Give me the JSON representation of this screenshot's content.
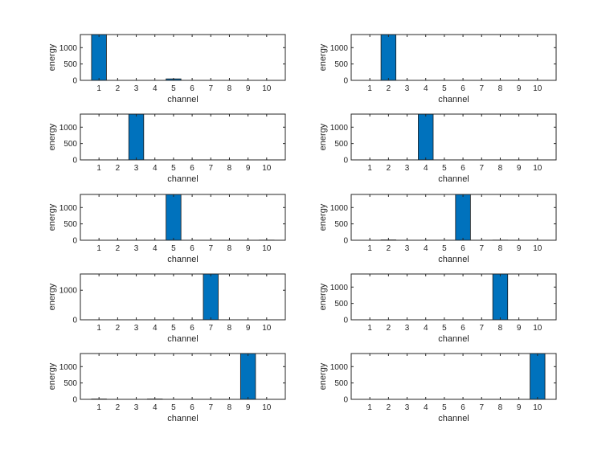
{
  "chart_data": [
    {
      "type": "bar",
      "xlabel": "channel",
      "ylabel": "energy",
      "categories": [
        "1",
        "2",
        "3",
        "4",
        "5",
        "6",
        "7",
        "8",
        "9",
        "10"
      ],
      "values": [
        1600,
        0,
        0,
        0,
        45,
        0,
        0,
        0,
        0,
        0
      ],
      "ylim": [
        0,
        1400
      ],
      "yticks": [
        "0",
        "500",
        "1000"
      ],
      "ytick_values": [
        0,
        500,
        1000
      ]
    },
    {
      "type": "bar",
      "xlabel": "channel",
      "ylabel": "energy",
      "categories": [
        "1",
        "2",
        "3",
        "4",
        "5",
        "6",
        "7",
        "8",
        "9",
        "10"
      ],
      "values": [
        0,
        1600,
        0,
        0,
        0,
        0,
        0,
        0,
        0,
        0
      ],
      "ylim": [
        0,
        1400
      ],
      "yticks": [
        "0",
        "500",
        "1000"
      ],
      "ytick_values": [
        0,
        500,
        1000
      ]
    },
    {
      "type": "bar",
      "xlabel": "channel",
      "ylabel": "energy",
      "categories": [
        "1",
        "2",
        "3",
        "4",
        "5",
        "6",
        "7",
        "8",
        "9",
        "10"
      ],
      "values": [
        0,
        0,
        1600,
        0,
        0,
        0,
        0,
        0,
        0,
        0
      ],
      "ylim": [
        0,
        1400
      ],
      "yticks": [
        "0",
        "500",
        "1000"
      ],
      "ytick_values": [
        0,
        500,
        1000
      ]
    },
    {
      "type": "bar",
      "xlabel": "channel",
      "ylabel": "energy",
      "categories": [
        "1",
        "2",
        "3",
        "4",
        "5",
        "6",
        "7",
        "8",
        "9",
        "10"
      ],
      "values": [
        0,
        0,
        0,
        1600,
        0,
        0,
        0,
        0,
        0,
        0
      ],
      "ylim": [
        0,
        1400
      ],
      "yticks": [
        "0",
        "500",
        "1000"
      ],
      "ytick_values": [
        0,
        500,
        1000
      ]
    },
    {
      "type": "bar",
      "xlabel": "channel",
      "ylabel": "energy",
      "categories": [
        "1",
        "2",
        "3",
        "4",
        "5",
        "6",
        "7",
        "8",
        "9",
        "10"
      ],
      "values": [
        0,
        0,
        0,
        0,
        1600,
        0,
        0,
        0,
        0,
        5
      ],
      "ylim": [
        0,
        1400
      ],
      "yticks": [
        "0",
        "500",
        "1000"
      ],
      "ytick_values": [
        0,
        500,
        1000
      ]
    },
    {
      "type": "bar",
      "xlabel": "channel",
      "ylabel": "energy",
      "categories": [
        "1",
        "2",
        "3",
        "4",
        "5",
        "6",
        "7",
        "8",
        "9",
        "10"
      ],
      "values": [
        0,
        10,
        0,
        0,
        0,
        1600,
        0,
        5,
        0,
        0
      ],
      "ylim": [
        0,
        1400
      ],
      "yticks": [
        "0",
        "500",
        "1000"
      ],
      "ytick_values": [
        0,
        500,
        1000
      ]
    },
    {
      "type": "bar",
      "xlabel": "channel",
      "ylabel": "energy",
      "categories": [
        "1",
        "2",
        "3",
        "4",
        "5",
        "6",
        "7",
        "8",
        "9",
        "10"
      ],
      "values": [
        0,
        0,
        0,
        0,
        0,
        0,
        1600,
        0,
        0,
        0
      ],
      "ylim": [
        0,
        1550
      ],
      "yticks": [
        "0",
        "1000"
      ],
      "ytick_values": [
        0,
        1000
      ]
    },
    {
      "type": "bar",
      "xlabel": "channel",
      "ylabel": "energy",
      "categories": [
        "1",
        "2",
        "3",
        "4",
        "5",
        "6",
        "7",
        "8",
        "9",
        "10"
      ],
      "values": [
        0,
        0,
        0,
        0,
        0,
        0,
        0,
        1600,
        0,
        0
      ],
      "ylim": [
        0,
        1400
      ],
      "yticks": [
        "0",
        "500",
        "1000"
      ],
      "ytick_values": [
        0,
        500,
        1000
      ]
    },
    {
      "type": "bar",
      "xlabel": "channel",
      "ylabel": "energy",
      "categories": [
        "1",
        "2",
        "3",
        "4",
        "5",
        "6",
        "7",
        "8",
        "9",
        "10"
      ],
      "values": [
        10,
        0,
        0,
        10,
        0,
        0,
        0,
        0,
        1600,
        0
      ],
      "ylim": [
        0,
        1400
      ],
      "yticks": [
        "0",
        "500",
        "1000"
      ],
      "ytick_values": [
        0,
        500,
        1000
      ]
    },
    {
      "type": "bar",
      "xlabel": "channel",
      "ylabel": "energy",
      "categories": [
        "1",
        "2",
        "3",
        "4",
        "5",
        "6",
        "7",
        "8",
        "9",
        "10"
      ],
      "values": [
        0,
        0,
        0,
        0,
        0,
        0,
        0,
        0,
        0,
        1600
      ],
      "ylim": [
        0,
        1400
      ],
      "yticks": [
        "0",
        "500",
        "1000"
      ],
      "ytick_values": [
        0,
        500,
        1000
      ]
    }
  ],
  "style": {
    "bar_color": "#0072BD",
    "axis_color": "#262626"
  }
}
